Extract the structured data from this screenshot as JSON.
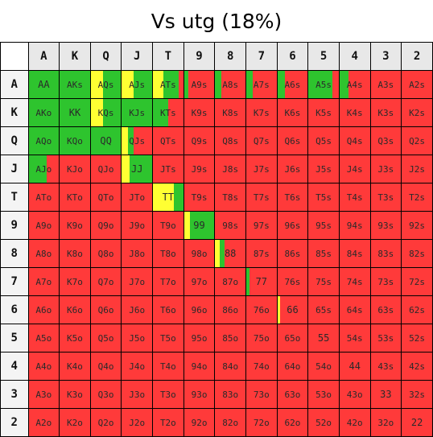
{
  "title": "Vs utg (18%)",
  "ranks": [
    "A",
    "K",
    "Q",
    "J",
    "T",
    "9",
    "8",
    "7",
    "6",
    "5",
    "4",
    "3",
    "2"
  ],
  "colors": {
    "fold": "#ff3a3a",
    "raise": "#2ec42e",
    "call": "#ffff33"
  },
  "mixed": [
    {
      "hand": "AQs",
      "yellow": 0.4,
      "green": 0.6
    },
    {
      "hand": "AJs",
      "yellow": 0.4,
      "green": 0.6
    },
    {
      "hand": "ATs",
      "yellow": 0.35,
      "green": 0.5
    },
    {
      "hand": "A9s",
      "yellow": 0.0,
      "green": 0.15
    },
    {
      "hand": "A8s",
      "yellow": 0.0,
      "green": 0.2
    },
    {
      "hand": "A7s",
      "yellow": 0.0,
      "green": 0.2
    },
    {
      "hand": "A6s",
      "yellow": 0.0,
      "green": 0.25
    },
    {
      "hand": "A5s",
      "yellow": 0.0,
      "green": 0.8
    },
    {
      "hand": "A4s",
      "yellow": 0.0,
      "green": 0.3
    },
    {
      "hand": "KQs",
      "yellow": 0.4,
      "green": 0.6
    },
    {
      "hand": "KJs",
      "yellow": 0.0,
      "green": 1.0
    },
    {
      "hand": "KTs",
      "yellow": 0.0,
      "green": 0.5
    },
    {
      "hand": "QJs",
      "yellow": 0.2,
      "green": 0.2
    },
    {
      "hand": "AJo",
      "yellow": 0.0,
      "green": 0.6
    },
    {
      "hand": "JJ",
      "yellow": 0.25,
      "green": 0.75
    },
    {
      "hand": "TT",
      "yellow": 0.7,
      "green": 0.3
    },
    {
      "hand": "99",
      "yellow": 0.2,
      "green": 0.8
    },
    {
      "hand": "88",
      "yellow": 0.15,
      "green": 0.15
    },
    {
      "hand": "77",
      "yellow": 0.0,
      "green": 0.1
    },
    {
      "hand": "66",
      "yellow": 0.1,
      "green": 0.0
    }
  ],
  "full_green": [
    "AA",
    "AKs",
    "AKo",
    "KK",
    "AQo",
    "KQo",
    "QQ"
  ]
}
